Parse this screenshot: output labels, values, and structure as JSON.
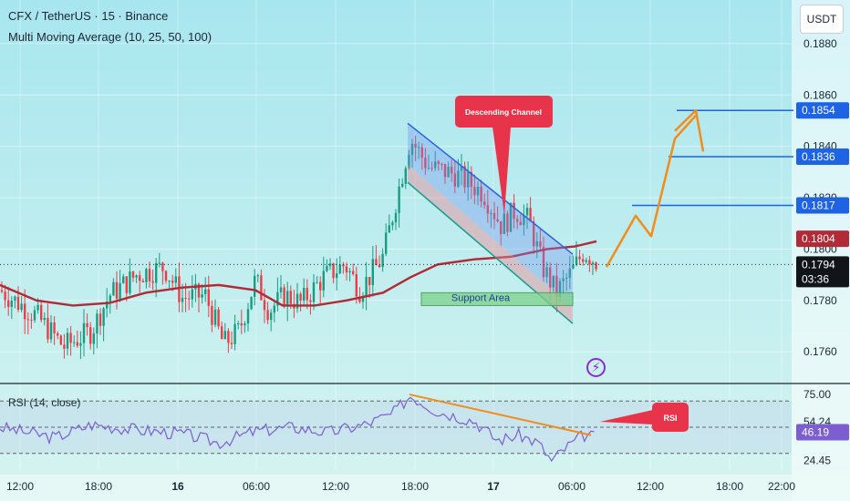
{
  "header": {
    "symbol_line": "CFX / TetherUS · 15 · Binance",
    "indicator_line": "Multi Moving Average (10, 25, 50, 100)"
  },
  "currency_button": "USDT",
  "colors": {
    "background": "#bdeff2",
    "up_candle": "#199c82",
    "down_candle": "#ee3d47",
    "moving_average": "#b12a35",
    "channel": "#2a63e0",
    "channel_lower": "#169b89",
    "projection": "#f28c1b",
    "level_line": "#1d63e3",
    "rsi_line": "#7d5ed0",
    "callout": "#e8344a",
    "icon_purple": "#8b2bd6"
  },
  "icons": {
    "lightning": "lightning-bolt-icon"
  },
  "chart_data": {
    "type": "candlestick",
    "pair": "CFX / TetherUS",
    "interval": "15",
    "exchange": "Binance",
    "price_axis": {
      "range": [
        0.1748,
        0.1897
      ],
      "ticks": [
        "0.1880",
        "0.1860",
        "0.1840",
        "0.1820",
        "0.1800",
        "0.1780",
        "0.1760"
      ]
    },
    "time_axis": {
      "ticks": [
        "12:00",
        "18:00",
        "16",
        "06:00",
        "12:00",
        "18:00",
        "17",
        "06:00",
        "12:00",
        "18:00",
        "22:00"
      ]
    },
    "price_badges": [
      {
        "label": "0.1854",
        "price": 0.1854,
        "style": "level"
      },
      {
        "label": "0.1836",
        "price": 0.1836,
        "style": "level"
      },
      {
        "label": "0.1817",
        "price": 0.1817,
        "style": "level"
      },
      {
        "label": "0.1804",
        "price": 0.1804,
        "style": "ma"
      },
      {
        "label": "0.1794",
        "price": 0.1794,
        "style": "last",
        "sub": "03:36"
      }
    ],
    "key_levels": [
      0.1854,
      0.1836,
      0.1817
    ],
    "last_price": 0.1794,
    "countdown": "03:36",
    "annotations": {
      "channel_label": "Descending Channel",
      "support_label": "Support Area",
      "rsi_label": "RSI"
    },
    "rsi": {
      "title": "RSI (14, close)",
      "range": [
        18,
        82
      ],
      "ticks": [
        "75.00",
        "54.24",
        "24.45"
      ],
      "current": "46.19",
      "upper_band": 70,
      "middle": 50,
      "lower_band": 30
    }
  }
}
